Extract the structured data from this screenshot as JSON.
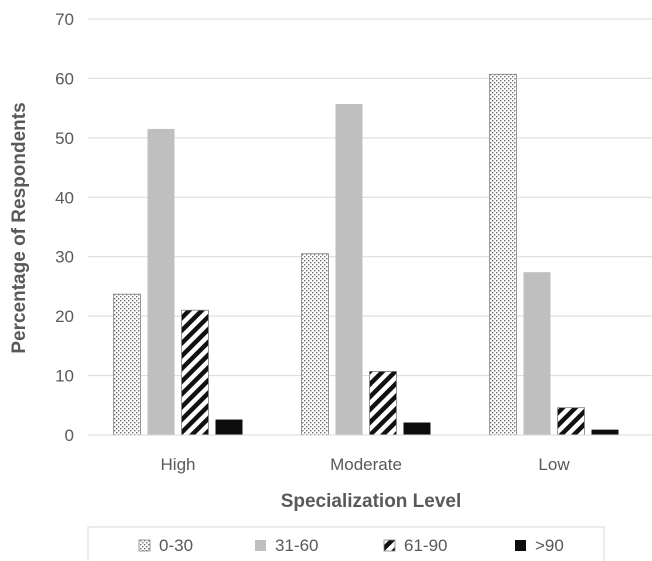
{
  "chart_data": {
    "type": "bar",
    "title": "",
    "xlabel": "Specialization Level",
    "ylabel": "Percentage of Respondents",
    "ylim": [
      0,
      70
    ],
    "yticks": [
      0,
      10,
      20,
      30,
      40,
      50,
      60,
      70
    ],
    "grid": true,
    "legend_position": "bottom",
    "categories": [
      "High",
      "Moderate",
      "Low"
    ],
    "series": [
      {
        "name": "0-30",
        "values": [
          23.7,
          30.5,
          60.7
        ],
        "pattern": "dots",
        "color": "#808080"
      },
      {
        "name": "31-60",
        "values": [
          51.5,
          55.7,
          27.4
        ],
        "pattern": "solid",
        "color": "#bfbfbf"
      },
      {
        "name": "61-90",
        "values": [
          21.0,
          10.7,
          4.6
        ],
        "pattern": "diagonal-stripes",
        "color": "#000000"
      },
      {
        "name": ">90",
        "values": [
          2.6,
          2.1,
          0.9
        ],
        "pattern": "solid",
        "color": "#0d0d0d"
      }
    ]
  }
}
